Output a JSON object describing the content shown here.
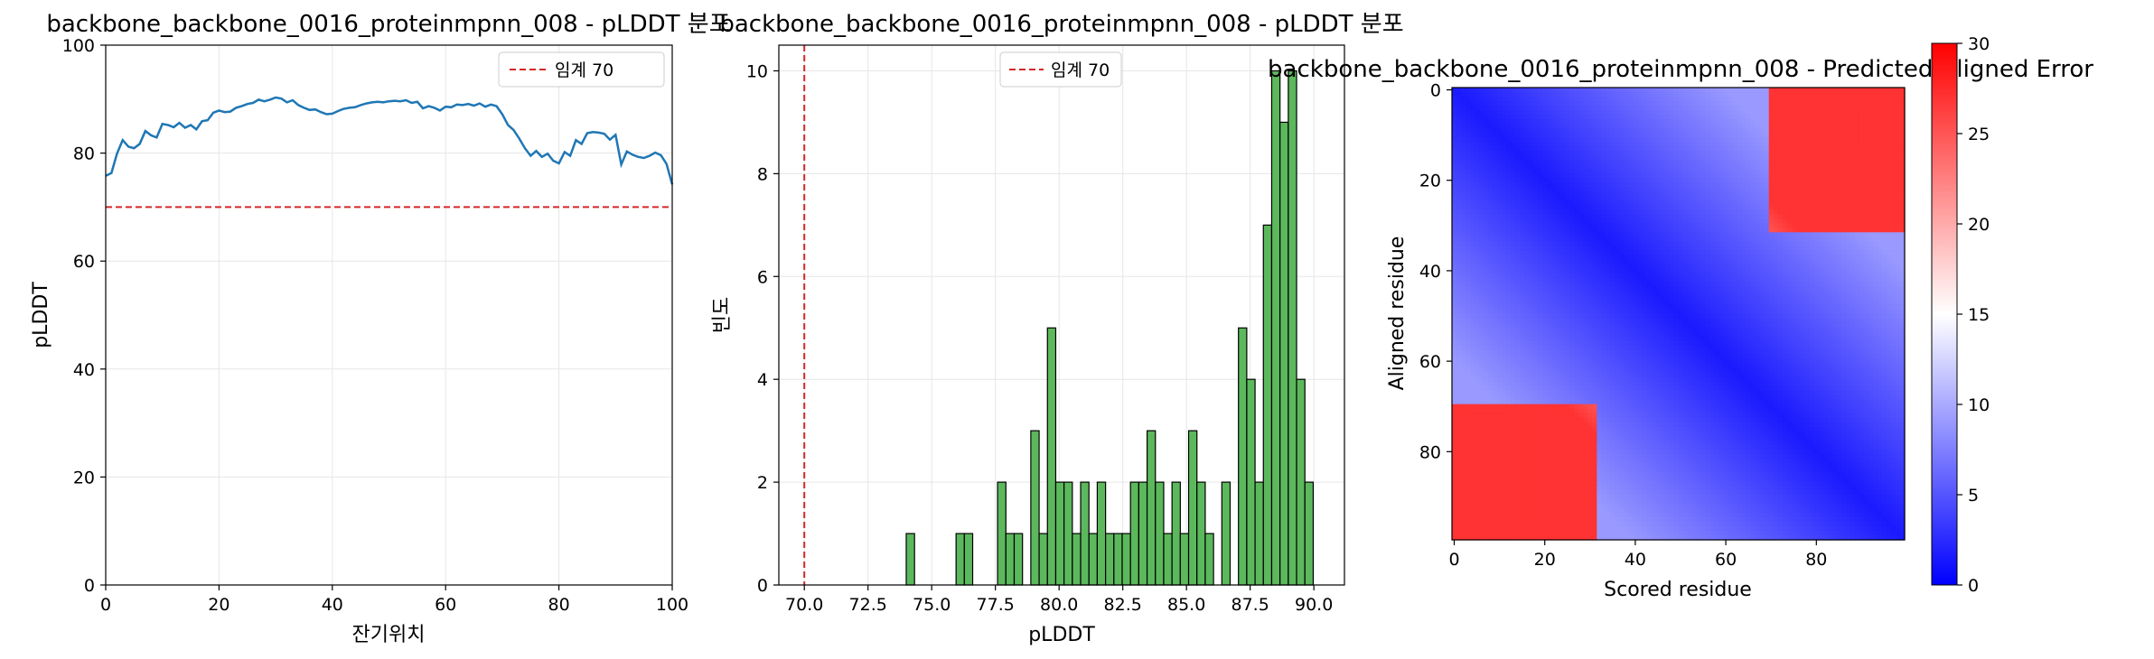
{
  "chart_data": [
    {
      "type": "line",
      "title": "backbone_backbone_0016_proteinmpnn_008 - pLDDT 분포",
      "xlabel": "잔기위치",
      "ylabel": "pLDDT",
      "xlim": [
        0,
        100
      ],
      "ylim": [
        0,
        100
      ],
      "xticks": [
        0,
        20,
        40,
        60,
        80,
        100
      ],
      "yticks": [
        0,
        20,
        40,
        60,
        80,
        100
      ],
      "grid": true,
      "legend_position": "top-right",
      "threshold": {
        "value": 70,
        "label": "임계 70",
        "color": "#d62728"
      },
      "series": [
        {
          "color": "#1f77b4",
          "x": [
            0,
            1,
            2,
            3,
            4,
            5,
            6,
            7,
            8,
            9,
            10,
            11,
            12,
            13,
            14,
            15,
            16,
            17,
            18,
            19,
            20,
            21,
            22,
            23,
            24,
            25,
            26,
            27,
            28,
            29,
            30,
            31,
            32,
            33,
            34,
            35,
            36,
            37,
            38,
            39,
            40,
            41,
            42,
            43,
            44,
            45,
            46,
            47,
            48,
            49,
            50,
            51,
            52,
            53,
            54,
            55,
            56,
            57,
            58,
            59,
            60,
            61,
            62,
            63,
            64,
            65,
            66,
            67,
            68,
            69,
            70,
            71,
            72,
            73,
            74,
            75,
            76,
            77,
            78,
            79,
            80,
            81,
            82,
            83,
            84,
            85,
            86,
            87,
            88,
            89,
            90,
            91,
            92,
            93,
            94,
            95,
            96,
            97,
            98,
            99,
            100
          ],
          "values": [
            75.8,
            76.3,
            79.9,
            82.4,
            81.2,
            80.9,
            81.7,
            84.1,
            83.3,
            82.9,
            85.4,
            85.2,
            84.8,
            85.6,
            84.7,
            85.2,
            84.4,
            85.9,
            86.1,
            87.5,
            87.9,
            87.6,
            87.7,
            88.4,
            88.7,
            89.1,
            89.3,
            89.9,
            89.6,
            89.9,
            90.3,
            90.1,
            89.4,
            89.8,
            88.9,
            88.4,
            88.0,
            88.1,
            87.6,
            87.2,
            87.3,
            87.8,
            88.2,
            88.4,
            88.5,
            88.9,
            89.2,
            89.4,
            89.5,
            89.4,
            89.6,
            89.7,
            89.6,
            89.8,
            89.3,
            89.5,
            88.3,
            88.7,
            88.4,
            87.9,
            88.6,
            88.5,
            89.0,
            88.9,
            89.1,
            88.8,
            89.2,
            88.6,
            89.0,
            88.7,
            87.2,
            85.2,
            84.3,
            82.7,
            80.9,
            79.5,
            80.4,
            79.3,
            79.9,
            78.6,
            78.1,
            80.2,
            79.5,
            82.4,
            81.7,
            83.7,
            83.9,
            83.8,
            83.6,
            82.5,
            83.4,
            77.9,
            80.3,
            79.7,
            79.3,
            79.1,
            79.5,
            80.1,
            79.6,
            78.0,
            74.2
          ]
        }
      ]
    },
    {
      "type": "bar",
      "subtype": "histogram",
      "title": "backbone_backbone_0016_proteinmpnn_008 - pLDDT 분포",
      "xlabel": "pLDDT",
      "ylabel": "빈도",
      "xlim": [
        69.0,
        91.2
      ],
      "ylim": [
        0,
        10.5
      ],
      "xticks": [
        70.0,
        72.5,
        75.0,
        77.5,
        80.0,
        82.5,
        85.0,
        87.5,
        90.0
      ],
      "yticks": [
        0,
        2,
        4,
        6,
        8,
        10
      ],
      "grid": true,
      "legend_position": "top-center",
      "bar_color": "#5cb85c",
      "threshold": {
        "value": 70,
        "label": "임계 70",
        "color": "#d62728"
      },
      "bin_start": 74.0,
      "bin_width": 0.326,
      "counts": [
        1,
        0,
        0,
        0,
        0,
        0,
        1,
        1,
        0,
        0,
        0,
        2,
        1,
        1,
        0,
        3,
        1,
        5,
        2,
        2,
        1,
        2,
        1,
        2,
        1,
        1,
        1,
        2,
        2,
        3,
        2,
        1,
        2,
        1,
        3,
        2,
        1,
        0,
        2,
        0,
        5,
        4,
        2,
        7,
        10,
        9,
        10,
        4,
        2
      ]
    },
    {
      "type": "heatmap",
      "title": "backbone_backbone_0016_proteinmpnn_008 - Predicted Aligned Error",
      "xlabel": "Scored residue",
      "ylabel": "Aligned residue",
      "n_residues": 100,
      "xticks": [
        0,
        20,
        40,
        60,
        80
      ],
      "yticks": [
        0,
        20,
        40,
        60,
        80
      ],
      "colorbar": {
        "min": 0,
        "max": 30,
        "ticks": [
          0,
          5,
          10,
          15,
          20,
          25,
          30
        ],
        "colormap": "bwr",
        "low_color": "#0000ff",
        "mid_color": "#ffffff",
        "high_color": "#ff0000"
      },
      "model": {
        "domain_a_end": 70,
        "domain_b_start": 32,
        "intra_error_near": 1.5,
        "intra_error_far": 9,
        "inter_error": 27
      }
    }
  ]
}
